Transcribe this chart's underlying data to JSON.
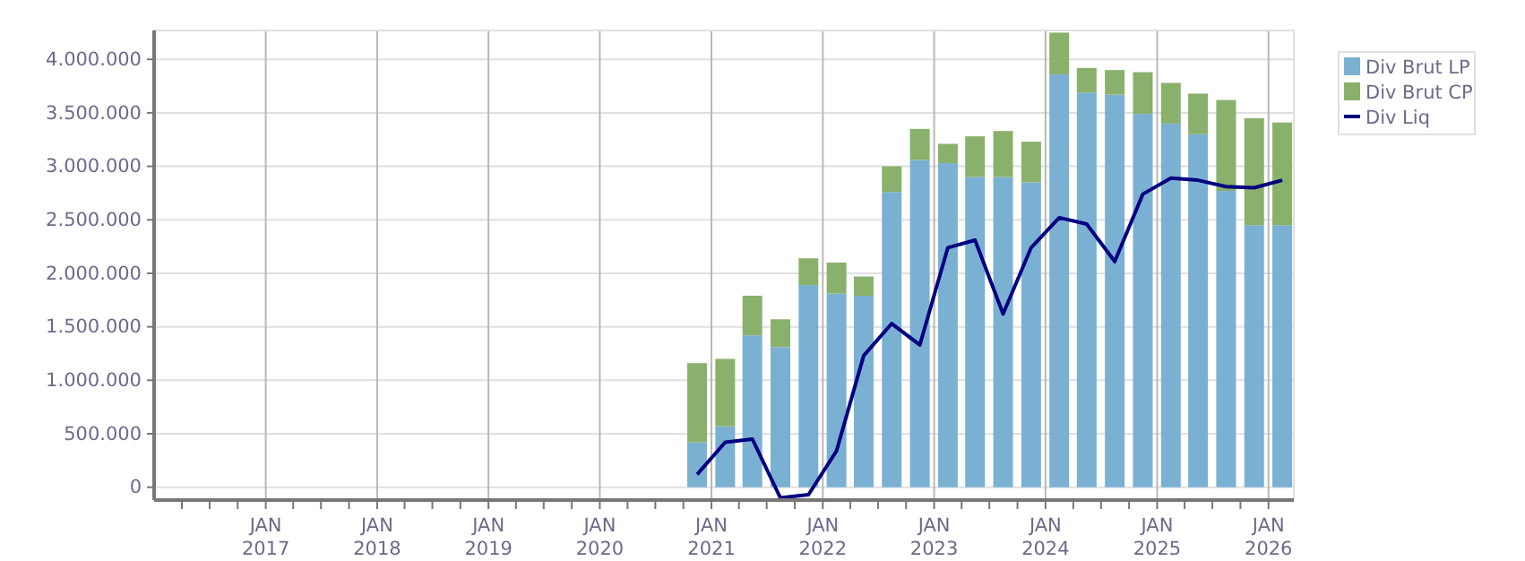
{
  "chart_data": {
    "type": "bar",
    "stacked": true,
    "x": [
      "2020-11-15",
      "2021-02-15",
      "2021-05-15",
      "2021-08-15",
      "2021-11-15",
      "2022-02-15",
      "2022-05-15",
      "2022-08-15",
      "2022-11-15",
      "2023-02-15",
      "2023-05-15",
      "2023-08-15",
      "2023-11-15",
      "2024-02-15",
      "2024-05-15",
      "2024-08-15",
      "2024-11-15",
      "2025-02-15",
      "2025-05-15",
      "2025-08-15",
      "2025-11-15",
      "2026-02-15"
    ],
    "series": [
      {
        "name": "Div Brut LP",
        "color": "#7ab1d3",
        "values": [
          420000,
          570000,
          1420000,
          1310000,
          1890000,
          1810000,
          1790000,
          2760000,
          3060000,
          3030000,
          2900000,
          2900000,
          2850000,
          3860000,
          3690000,
          3670000,
          3490000,
          3400000,
          3300000,
          2770000,
          2450000,
          2450000
        ]
      },
      {
        "name": "Div Brut CP",
        "color": "#8ab16b",
        "values": [
          740000,
          630000,
          370000,
          260000,
          250000,
          290000,
          180000,
          240000,
          290000,
          180000,
          380000,
          430000,
          380000,
          390000,
          230000,
          230000,
          390000,
          380000,
          380000,
          850000,
          1000000,
          960000
        ]
      },
      {
        "name": "Div Liq",
        "type": "line",
        "color": "#000080",
        "values": [
          120000,
          420000,
          450000,
          -100000,
          -70000,
          340000,
          1230000,
          1530000,
          1330000,
          2240000,
          2310000,
          1620000,
          2240000,
          2520000,
          2460000,
          2110000,
          2740000,
          2890000,
          2870000,
          2810000,
          2800000,
          2870000
        ]
      }
    ],
    "xlim": [
      "2016-01-01",
      "2026-03-25"
    ],
    "xticks": [
      {
        "value": "2016-04-01",
        "label": null
      },
      {
        "value": "2016-07-01",
        "label": null
      },
      {
        "value": "2016-10-01",
        "label": null
      },
      {
        "value": "2017-01-01",
        "label": "JAN\n2017"
      },
      {
        "value": "2017-04-01",
        "label": null
      },
      {
        "value": "2017-07-01",
        "label": null
      },
      {
        "value": "2017-10-01",
        "label": null
      },
      {
        "value": "2018-01-01",
        "label": "JAN\n2018"
      },
      {
        "value": "2018-04-01",
        "label": null
      },
      {
        "value": "2018-07-01",
        "label": null
      },
      {
        "value": "2018-10-01",
        "label": null
      },
      {
        "value": "2019-01-01",
        "label": "JAN\n2019"
      },
      {
        "value": "2019-04-01",
        "label": null
      },
      {
        "value": "2019-07-01",
        "label": null
      },
      {
        "value": "2019-10-01",
        "label": null
      },
      {
        "value": "2020-01-01",
        "label": "JAN\n2020"
      },
      {
        "value": "2020-04-01",
        "label": null
      },
      {
        "value": "2020-07-01",
        "label": null
      },
      {
        "value": "2020-10-01",
        "label": null
      },
      {
        "value": "2021-01-01",
        "label": "JAN\n2021"
      },
      {
        "value": "2021-04-01",
        "label": null
      },
      {
        "value": "2021-07-01",
        "label": null
      },
      {
        "value": "2021-10-01",
        "label": null
      },
      {
        "value": "2022-01-01",
        "label": "JAN\n2022"
      },
      {
        "value": "2022-04-01",
        "label": null
      },
      {
        "value": "2022-07-01",
        "label": null
      },
      {
        "value": "2022-10-01",
        "label": null
      },
      {
        "value": "2023-01-01",
        "label": "JAN\n2023"
      },
      {
        "value": "2023-04-01",
        "label": null
      },
      {
        "value": "2023-07-01",
        "label": null
      },
      {
        "value": "2023-10-01",
        "label": null
      },
      {
        "value": "2024-01-01",
        "label": "JAN\n2024"
      },
      {
        "value": "2024-04-01",
        "label": null
      },
      {
        "value": "2024-07-01",
        "label": null
      },
      {
        "value": "2024-10-01",
        "label": null
      },
      {
        "value": "2025-01-01",
        "label": "JAN\n2025"
      },
      {
        "value": "2025-04-01",
        "label": null
      },
      {
        "value": "2025-07-01",
        "label": null
      },
      {
        "value": "2025-10-01",
        "label": null
      },
      {
        "value": "2026-01-01",
        "label": "JAN\n2026"
      }
    ],
    "ylim": [
      -120000,
      4270000
    ],
    "yticks": [
      {
        "value": 0,
        "label": "0"
      },
      {
        "value": 500000,
        "label": "500.000"
      },
      {
        "value": 1000000,
        "label": "1.000.000"
      },
      {
        "value": 1500000,
        "label": "1.500.000"
      },
      {
        "value": 2000000,
        "label": "2.000.000"
      },
      {
        "value": 2500000,
        "label": "2.500.000"
      },
      {
        "value": 3000000,
        "label": "3.000.000"
      },
      {
        "value": 3500000,
        "label": "3.500.000"
      },
      {
        "value": 4000000,
        "label": "4.000.000"
      }
    ],
    "grid": true,
    "legend": "right"
  }
}
